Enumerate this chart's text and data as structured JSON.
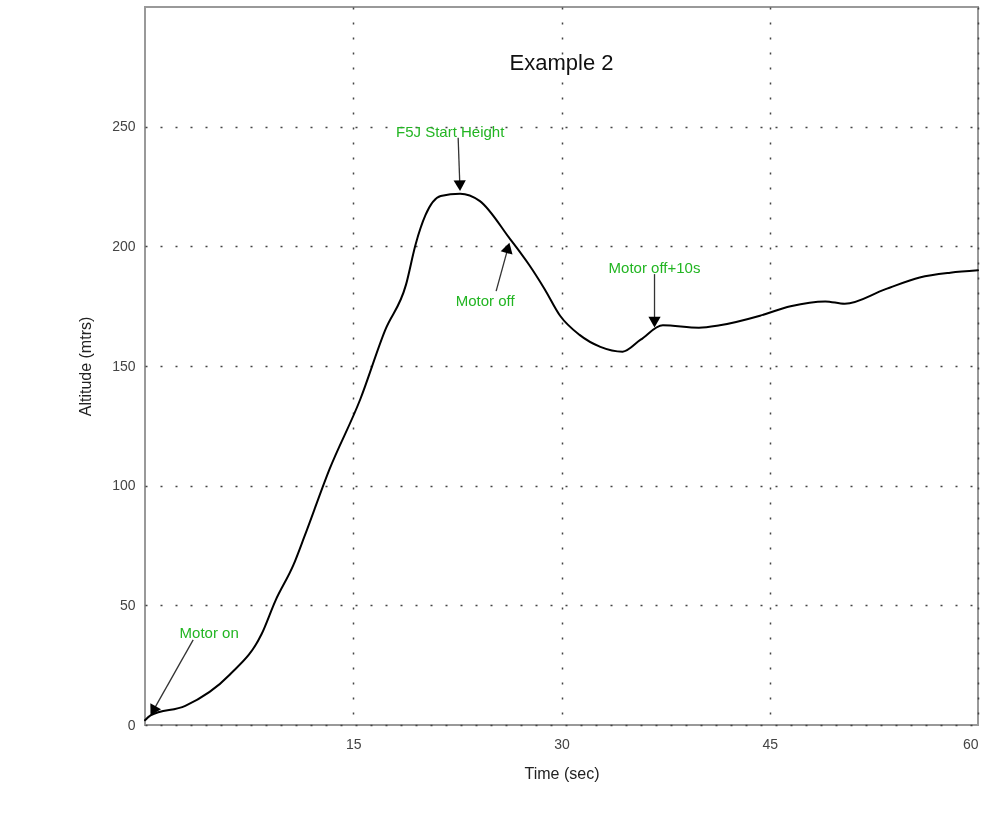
{
  "chart_data": {
    "type": "line",
    "title": "Example 2",
    "xlabel": "Time (sec)",
    "ylabel": "Altitude (mtrs)",
    "x": [
      0,
      0.4,
      2.9,
      6.1,
      8.4,
      9.4,
      10.7,
      11.5,
      13.3,
      15.5,
      17.3,
      18.8,
      19.5,
      20.2,
      21.3,
      22.7,
      24.1,
      26.3,
      27.7,
      28.8,
      29.9,
      31.3,
      32.8,
      34.4,
      35.7,
      37.3,
      39.9,
      41.4,
      44.3,
      46.5,
      49,
      50.4,
      53.3,
      55.8,
      58,
      60
    ],
    "series": [
      {
        "color": "#000000",
        "values": [
          2,
          4,
          8,
          21,
          38,
          52,
          67,
          79,
          107,
          136,
          165,
          184,
          201,
          213,
          221,
          222,
          219,
          203,
          192,
          182,
          171,
          163,
          158,
          156,
          161,
          167,
          166,
          167,
          171,
          175,
          177,
          176,
          182,
          187,
          189,
          190
        ]
      }
    ],
    "xlim": [
      0,
      60
    ],
    "xticks": [
      15,
      30,
      45,
      60
    ],
    "ylim": [
      0,
      300
    ],
    "yticks": [
      0,
      50,
      100,
      150,
      200,
      250
    ],
    "grid": true,
    "marker": "none",
    "line_style": "solid",
    "annotations": [
      {
        "text": "Motor on",
        "x": 0.3,
        "y": 3
      },
      {
        "text": "F5J Start Height",
        "x": 22.7,
        "y": 222
      },
      {
        "text": "Motor off",
        "x": 26.3,
        "y": 203
      },
      {
        "text": "Motor off+10s",
        "x": 36.7,
        "y": 165
      }
    ]
  }
}
